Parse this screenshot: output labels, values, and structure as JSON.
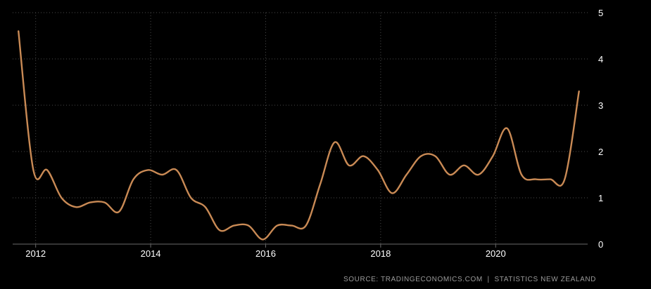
{
  "chart_data": {
    "type": "line",
    "series": [
      {
        "color": "#c98a55",
        "points": [
          {
            "x": 2011.7,
            "y": 4.6
          },
          {
            "x": 2011.96,
            "y": 1.6
          },
          {
            "x": 2012.2,
            "y": 1.6
          },
          {
            "x": 2012.45,
            "y": 1.0
          },
          {
            "x": 2012.7,
            "y": 0.8
          },
          {
            "x": 2012.95,
            "y": 0.9
          },
          {
            "x": 2013.2,
            "y": 0.9
          },
          {
            "x": 2013.45,
            "y": 0.7
          },
          {
            "x": 2013.7,
            "y": 1.4
          },
          {
            "x": 2013.95,
            "y": 1.6
          },
          {
            "x": 2014.2,
            "y": 1.5
          },
          {
            "x": 2014.45,
            "y": 1.6
          },
          {
            "x": 2014.7,
            "y": 1.0
          },
          {
            "x": 2014.95,
            "y": 0.8
          },
          {
            "x": 2015.2,
            "y": 0.3
          },
          {
            "x": 2015.45,
            "y": 0.4
          },
          {
            "x": 2015.7,
            "y": 0.4
          },
          {
            "x": 2015.95,
            "y": 0.1
          },
          {
            "x": 2016.2,
            "y": 0.4
          },
          {
            "x": 2016.45,
            "y": 0.4
          },
          {
            "x": 2016.7,
            "y": 0.4
          },
          {
            "x": 2016.95,
            "y": 1.3
          },
          {
            "x": 2017.2,
            "y": 2.2
          },
          {
            "x": 2017.45,
            "y": 1.7
          },
          {
            "x": 2017.7,
            "y": 1.9
          },
          {
            "x": 2017.95,
            "y": 1.6
          },
          {
            "x": 2018.2,
            "y": 1.1
          },
          {
            "x": 2018.45,
            "y": 1.5
          },
          {
            "x": 2018.7,
            "y": 1.9
          },
          {
            "x": 2018.95,
            "y": 1.9
          },
          {
            "x": 2019.2,
            "y": 1.5
          },
          {
            "x": 2019.45,
            "y": 1.7
          },
          {
            "x": 2019.7,
            "y": 1.5
          },
          {
            "x": 2019.95,
            "y": 1.9
          },
          {
            "x": 2020.2,
            "y": 2.5
          },
          {
            "x": 2020.45,
            "y": 1.5
          },
          {
            "x": 2020.7,
            "y": 1.4
          },
          {
            "x": 2020.95,
            "y": 1.4
          },
          {
            "x": 2021.2,
            "y": 1.4
          },
          {
            "x": 2021.45,
            "y": 3.3
          }
        ]
      }
    ],
    "x_ticks": [
      "2012",
      "2014",
      "2016",
      "2018",
      "2020"
    ],
    "y_ticks": [
      "0",
      "1",
      "2",
      "3",
      "4",
      "5"
    ],
    "xlim": [
      2011.6,
      2021.6
    ],
    "ylim": [
      0,
      5
    ],
    "grid": "dotted",
    "background": "#000000",
    "source": "SOURCE: TRADINGECONOMICS.COM  |  STATISTICS NEW ZEALAND"
  }
}
